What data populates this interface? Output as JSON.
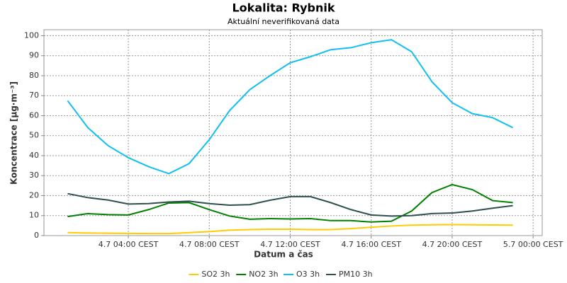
{
  "chart_data": {
    "type": "line",
    "title": "Lokalita: Rybnik",
    "subtitle": "Aktuální neverifikovaná data",
    "x_label": "Datum a čas",
    "y_label": "Koncentrace [µg·m⁻³]",
    "x": [
      1,
      2,
      3,
      4,
      5,
      6,
      7,
      8,
      9,
      10,
      11,
      12,
      13,
      14,
      15,
      16,
      17,
      18,
      19,
      20,
      21,
      22,
      23
    ],
    "series": [
      {
        "name": "SO2 3h",
        "color": "#ffcc00",
        "values": [
          1.5,
          1.3,
          1.2,
          1.1,
          1.0,
          1.0,
          1.5,
          2.0,
          2.7,
          3.0,
          3.2,
          3.2,
          3.0,
          3.0,
          3.5,
          4.2,
          4.8,
          5.2,
          5.4,
          5.5,
          5.4,
          5.3,
          5.2
        ]
      },
      {
        "name": "NO2 3h",
        "color": "#008000",
        "values": [
          9.5,
          11,
          10.5,
          10.3,
          13,
          16.3,
          16.5,
          13,
          9.8,
          8.2,
          8.5,
          8.3,
          8.5,
          7.5,
          7.5,
          6.8,
          7.2,
          12.3,
          21.5,
          25.5,
          23,
          17.5,
          16.5
        ]
      },
      {
        "name": "O3 3h",
        "color": "#11bff0",
        "values": [
          67.5,
          54,
          45,
          39,
          34.5,
          31,
          36,
          48,
          62.5,
          73,
          80,
          86.5,
          89.5,
          93,
          94,
          96.5,
          98,
          92,
          77,
          66.5,
          61,
          59,
          54
        ]
      },
      {
        "name": "PM10 3h",
        "color": "#2f4f4f",
        "values": [
          21,
          19,
          17.8,
          15.8,
          16,
          16.8,
          17.2,
          16,
          15.2,
          15.5,
          17.7,
          19.5,
          19.5,
          16.5,
          13,
          10.3,
          9.8,
          10,
          11,
          11.3,
          12.3,
          13.7,
          15
        ]
      }
    ],
    "xlim": [
      -0.17,
      24.45
    ],
    "xticks": [
      {
        "value": 4,
        "label": "4.7 04:00 CEST"
      },
      {
        "value": 8,
        "label": "4.7 08:00 CEST"
      },
      {
        "value": 12,
        "label": "4.7 12:00 CEST"
      },
      {
        "value": 16,
        "label": "4.7 16:00 CEST"
      },
      {
        "value": 20,
        "label": "4.7 20:00 CEST"
      },
      {
        "value": 24,
        "label": "5.7 00:00 CEST"
      }
    ],
    "ylim": [
      0,
      103
    ],
    "yticks": [
      0,
      10,
      20,
      30,
      40,
      50,
      60,
      70,
      80,
      90,
      100
    ],
    "grid": true,
    "legend": "bottom"
  }
}
